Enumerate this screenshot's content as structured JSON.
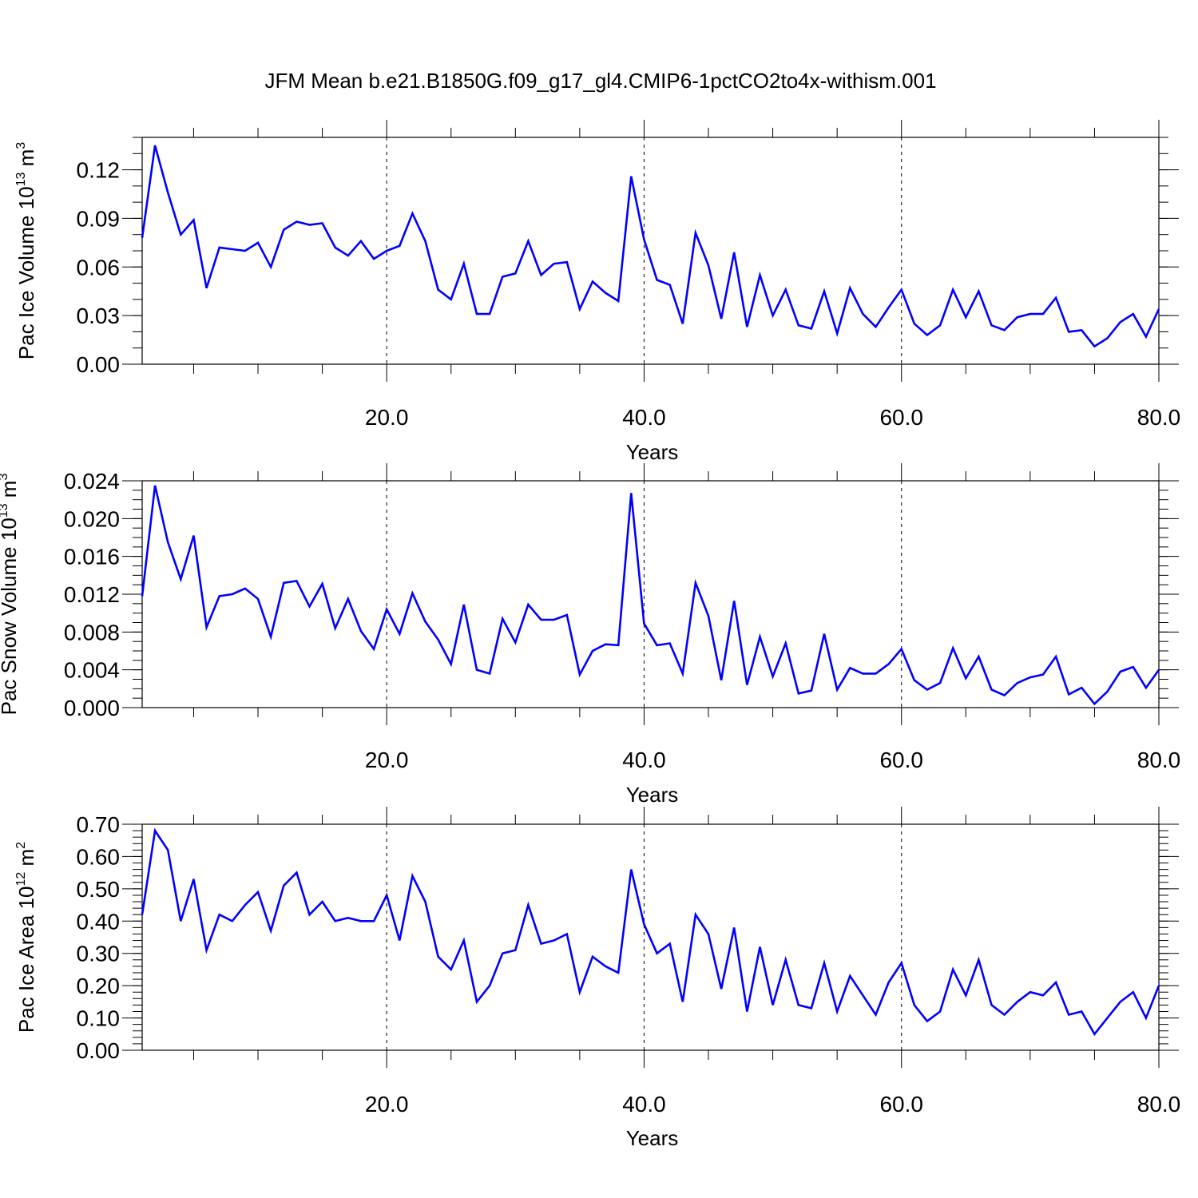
{
  "title": "JFM Mean b.e21.B1850G.f09_g17_gl4.CMIP6-1pctCO2to4x-withism.001",
  "colors": {
    "series": "#0000ff",
    "axis": "#000000",
    "grid": "#000000"
  },
  "chart_data": [
    {
      "type": "line",
      "ylabel": "Pac Ice Volume 10",
      "ylabel_exp": "13",
      "ylabel_unit": " m",
      "ylabel_unit_exp": "3",
      "xlabel": "Years",
      "xlim": [
        1,
        80
      ],
      "ylim": [
        0,
        0.14
      ],
      "yticks": [
        0.0,
        0.03,
        0.06,
        0.09,
        0.12
      ],
      "ytick_labels": [
        "0.00",
        "0.03",
        "0.06",
        "0.09",
        "0.12"
      ],
      "yminor_step": 0.01,
      "xticks": [
        20,
        40,
        60,
        80
      ],
      "xtick_labels": [
        "20.0",
        "40.0",
        "60.0",
        "80.0"
      ],
      "xminor_step": 5,
      "grid": true,
      "x": [
        1,
        2,
        3,
        4,
        5,
        6,
        7,
        8,
        9,
        10,
        11,
        12,
        13,
        14,
        15,
        16,
        17,
        18,
        19,
        20,
        21,
        22,
        23,
        24,
        25,
        26,
        27,
        28,
        29,
        30,
        31,
        32,
        33,
        34,
        35,
        36,
        37,
        38,
        39,
        40,
        41,
        42,
        43,
        44,
        45,
        46,
        47,
        48,
        49,
        50,
        51,
        52,
        53,
        54,
        55,
        56,
        57,
        58,
        59,
        60,
        61,
        62,
        63,
        64,
        65,
        66,
        67,
        68,
        69,
        70,
        71,
        72,
        73,
        74,
        75,
        76,
        77,
        78,
        79,
        80
      ],
      "y": [
        0.078,
        0.135,
        0.106,
        0.08,
        0.089,
        0.047,
        0.072,
        0.071,
        0.07,
        0.075,
        0.06,
        0.083,
        0.088,
        0.086,
        0.087,
        0.072,
        0.067,
        0.076,
        0.065,
        0.07,
        0.073,
        0.093,
        0.076,
        0.046,
        0.04,
        0.062,
        0.031,
        0.031,
        0.054,
        0.056,
        0.076,
        0.055,
        0.062,
        0.063,
        0.034,
        0.051,
        0.044,
        0.039,
        0.116,
        0.077,
        0.052,
        0.049,
        0.025,
        0.081,
        0.061,
        0.028,
        0.069,
        0.023,
        0.055,
        0.03,
        0.046,
        0.024,
        0.022,
        0.045,
        0.019,
        0.047,
        0.031,
        0.023,
        0.035,
        0.046,
        0.025,
        0.018,
        0.024,
        0.046,
        0.029,
        0.045,
        0.024,
        0.021,
        0.029,
        0.031,
        0.031,
        0.041,
        0.02,
        0.021,
        0.011,
        0.016,
        0.026,
        0.031,
        0.017,
        0.034
      ]
    },
    {
      "type": "line",
      "ylabel": "Pac Snow Volume 10",
      "ylabel_exp": "13",
      "ylabel_unit": " m",
      "ylabel_unit_exp": "3",
      "xlabel": "Years",
      "xlim": [
        1,
        80
      ],
      "ylim": [
        0,
        0.024
      ],
      "yticks": [
        0.0,
        0.004,
        0.008,
        0.012,
        0.016,
        0.02,
        0.024
      ],
      "ytick_labels": [
        "0.000",
        "0.004",
        "0.008",
        "0.012",
        "0.016",
        "0.020",
        "0.024"
      ],
      "yminor_step": 0.001,
      "xticks": [
        20,
        40,
        60,
        80
      ],
      "xtick_labels": [
        "20.0",
        "40.0",
        "60.0",
        "80.0"
      ],
      "xminor_step": 5,
      "grid": true,
      "x": [
        1,
        2,
        3,
        4,
        5,
        6,
        7,
        8,
        9,
        10,
        11,
        12,
        13,
        14,
        15,
        16,
        17,
        18,
        19,
        20,
        21,
        22,
        23,
        24,
        25,
        26,
        27,
        28,
        29,
        30,
        31,
        32,
        33,
        34,
        35,
        36,
        37,
        38,
        39,
        40,
        41,
        42,
        43,
        44,
        45,
        46,
        47,
        48,
        49,
        50,
        51,
        52,
        53,
        54,
        55,
        56,
        57,
        58,
        59,
        60,
        61,
        62,
        63,
        64,
        65,
        66,
        67,
        68,
        69,
        70,
        71,
        72,
        73,
        74,
        75,
        76,
        77,
        78,
        79,
        80
      ],
      "y": [
        0.0118,
        0.0235,
        0.0175,
        0.0136,
        0.0182,
        0.0085,
        0.0118,
        0.012,
        0.0126,
        0.0115,
        0.0075,
        0.0132,
        0.0134,
        0.0107,
        0.0131,
        0.0084,
        0.0115,
        0.0081,
        0.0062,
        0.0104,
        0.0078,
        0.0121,
        0.0091,
        0.0072,
        0.0046,
        0.0109,
        0.004,
        0.0036,
        0.0094,
        0.0069,
        0.0109,
        0.0093,
        0.0093,
        0.0098,
        0.0035,
        0.006,
        0.0067,
        0.0066,
        0.0227,
        0.0089,
        0.0066,
        0.0068,
        0.0036,
        0.0132,
        0.0097,
        0.0029,
        0.0113,
        0.0024,
        0.0075,
        0.0033,
        0.0068,
        0.0015,
        0.0018,
        0.0078,
        0.0019,
        0.0042,
        0.0036,
        0.0036,
        0.0046,
        0.0062,
        0.0029,
        0.0019,
        0.0026,
        0.0063,
        0.0031,
        0.0054,
        0.0019,
        0.0013,
        0.0026,
        0.0032,
        0.0035,
        0.0054,
        0.0014,
        0.0021,
        0.0004,
        0.0017,
        0.0038,
        0.0043,
        0.0021,
        0.004
      ]
    },
    {
      "type": "line",
      "ylabel": "Pac Ice Area 10",
      "ylabel_exp": "12",
      "ylabel_unit": " m",
      "ylabel_unit_exp": "2",
      "xlabel": "Years",
      "xlim": [
        1,
        80
      ],
      "ylim": [
        0,
        0.7
      ],
      "yticks": [
        0.0,
        0.1,
        0.2,
        0.3,
        0.4,
        0.5,
        0.6,
        0.7
      ],
      "ytick_labels": [
        "0.00",
        "0.10",
        "0.20",
        "0.30",
        "0.40",
        "0.50",
        "0.60",
        "0.70"
      ],
      "yminor_step": 0.02,
      "xticks": [
        20,
        40,
        60,
        80
      ],
      "xtick_labels": [
        "20.0",
        "40.0",
        "60.0",
        "80.0"
      ],
      "xminor_step": 5,
      "grid": true,
      "x": [
        1,
        2,
        3,
        4,
        5,
        6,
        7,
        8,
        9,
        10,
        11,
        12,
        13,
        14,
        15,
        16,
        17,
        18,
        19,
        20,
        21,
        22,
        23,
        24,
        25,
        26,
        27,
        28,
        29,
        30,
        31,
        32,
        33,
        34,
        35,
        36,
        37,
        38,
        39,
        40,
        41,
        42,
        43,
        44,
        45,
        46,
        47,
        48,
        49,
        50,
        51,
        52,
        53,
        54,
        55,
        56,
        57,
        58,
        59,
        60,
        61,
        62,
        63,
        64,
        65,
        66,
        67,
        68,
        69,
        70,
        71,
        72,
        73,
        74,
        75,
        76,
        77,
        78,
        79,
        80
      ],
      "y": [
        0.42,
        0.68,
        0.62,
        0.4,
        0.53,
        0.31,
        0.42,
        0.4,
        0.45,
        0.49,
        0.37,
        0.51,
        0.55,
        0.42,
        0.46,
        0.4,
        0.41,
        0.4,
        0.4,
        0.48,
        0.34,
        0.54,
        0.46,
        0.29,
        0.25,
        0.34,
        0.15,
        0.2,
        0.3,
        0.31,
        0.45,
        0.33,
        0.34,
        0.36,
        0.18,
        0.29,
        0.26,
        0.24,
        0.56,
        0.39,
        0.3,
        0.33,
        0.15,
        0.42,
        0.36,
        0.19,
        0.38,
        0.12,
        0.32,
        0.14,
        0.28,
        0.14,
        0.13,
        0.27,
        0.12,
        0.23,
        0.17,
        0.11,
        0.21,
        0.27,
        0.14,
        0.09,
        0.12,
        0.25,
        0.17,
        0.28,
        0.14,
        0.11,
        0.15,
        0.18,
        0.17,
        0.21,
        0.11,
        0.12,
        0.05,
        0.1,
        0.15,
        0.18,
        0.1,
        0.2
      ]
    }
  ]
}
